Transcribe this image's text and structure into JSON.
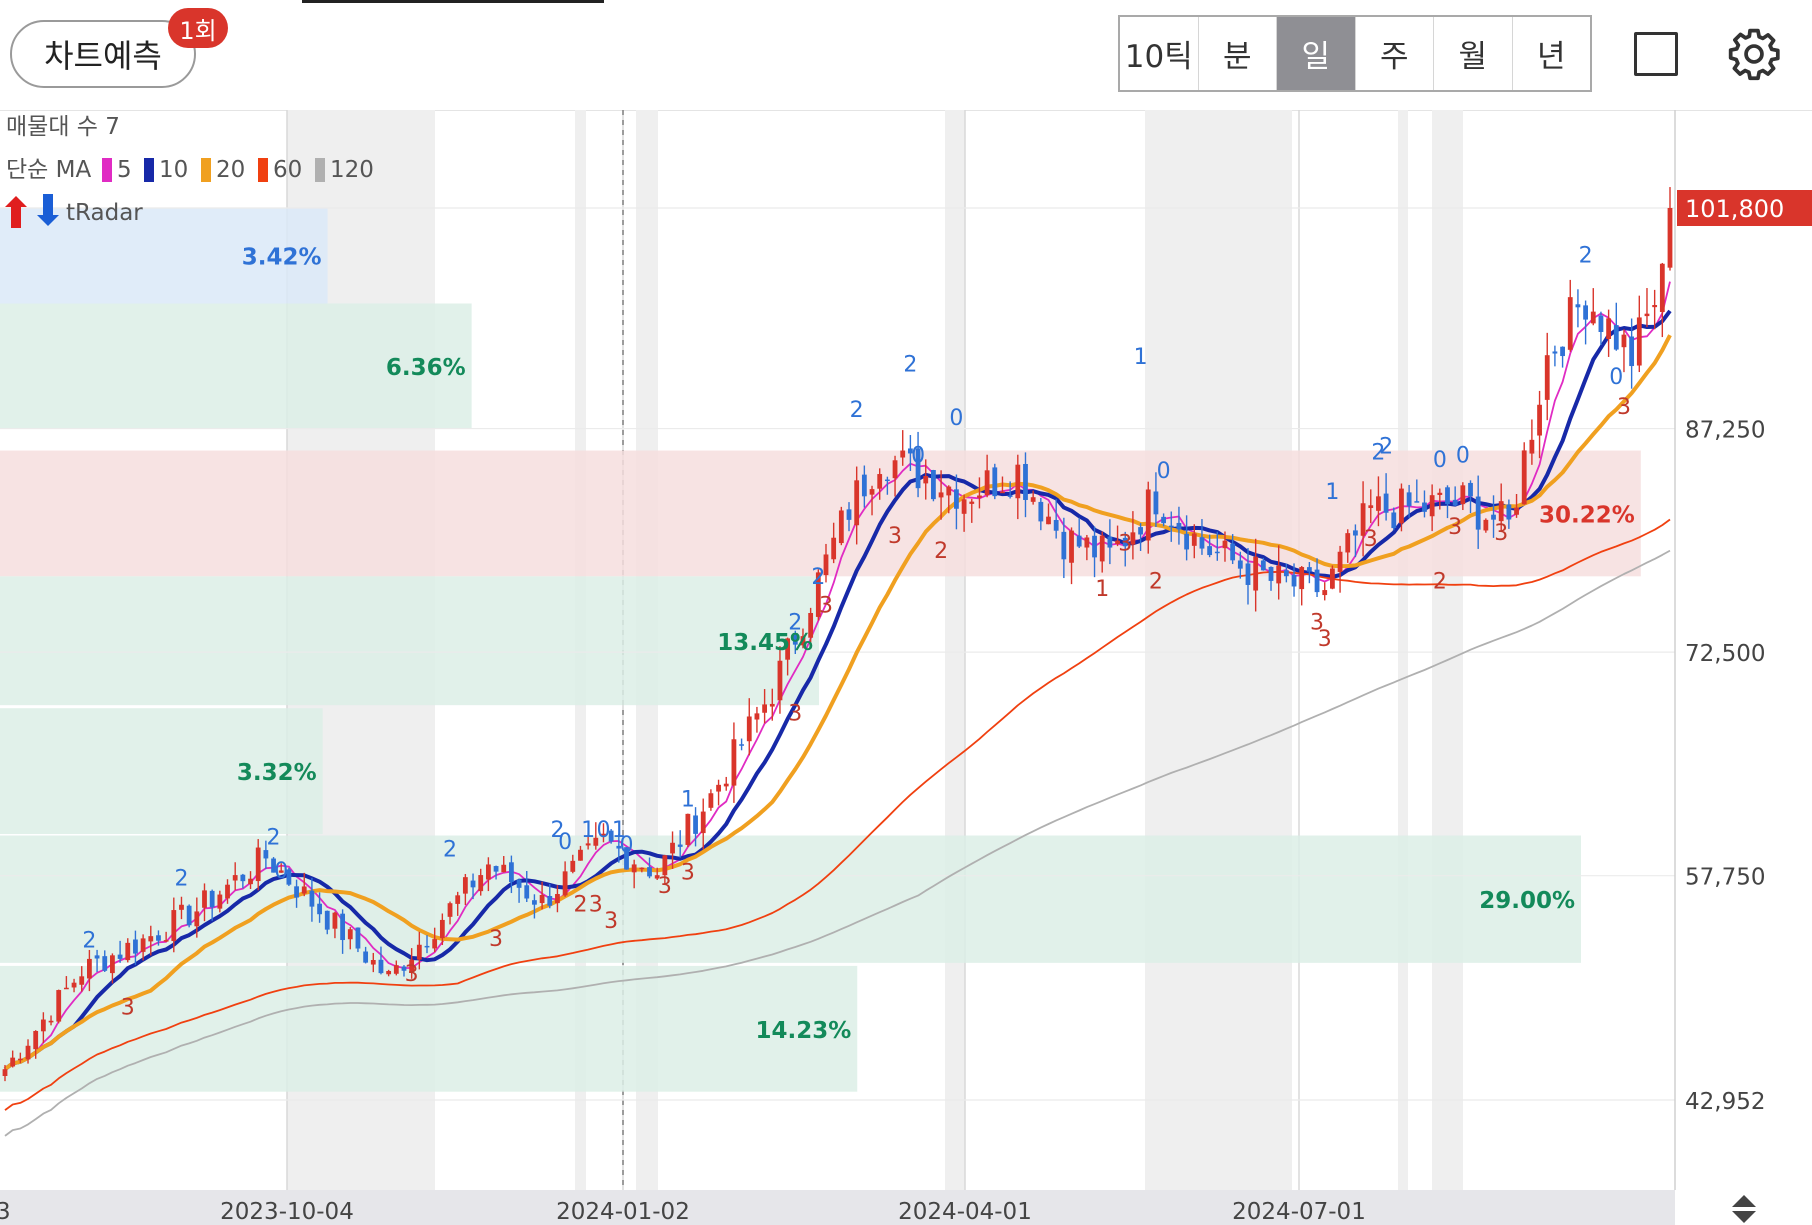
{
  "toolbar": {
    "predict_label": "차트예측",
    "predict_badge": "1회",
    "periods": [
      "10틱",
      "분",
      "일",
      "주",
      "월",
      "년"
    ],
    "active_period": "일",
    "layout_icon": "square-icon",
    "settings_icon": "gear-icon"
  },
  "legend": {
    "volume_profile": "매물대 수 7",
    "ma_type": "단순 MA",
    "ma_items": [
      {
        "period": "5",
        "color": "#e02bc3"
      },
      {
        "period": "10",
        "color": "#1729a8"
      },
      {
        "period": "20",
        "color": "#f0a020"
      },
      {
        "period": "60",
        "color": "#f04010"
      },
      {
        "period": "120",
        "color": "#b0b0b0"
      }
    ],
    "indicator": "tRadar"
  },
  "colors": {
    "up": "#d9352b",
    "down": "#2f72d6",
    "zone_green": "#dcefe6",
    "zone_blue": "#dbe9f8",
    "zone_red": "#f6dede",
    "pct_green": "#138a5a",
    "pct_blue": "#2f72d6",
    "pct_red": "#d9352b"
  },
  "chart_data": {
    "type": "candlestick",
    "y_axis": {
      "ticks": [
        "101,800",
        "87,250",
        "72,500",
        "57,750",
        "42,952"
      ],
      "values": [
        101800,
        87250,
        72500,
        57750,
        42952
      ]
    },
    "x_axis": {
      "ticks": [
        "2023-10-04",
        "2024-01-02",
        "2024-04-01",
        "2024-07-01"
      ],
      "left_clip_label": "3"
    },
    "last_price": "101,800",
    "last_price_value": 101800,
    "volume_profile": [
      {
        "low": 95500,
        "high": 101800,
        "pct": "3.42%",
        "share": 3.42,
        "color": "blue"
      },
      {
        "low": 87250,
        "high": 95500,
        "pct": "6.36%",
        "share": 6.36,
        "color": "green"
      },
      {
        "low": 77500,
        "high": 85800,
        "pct": "30.22%",
        "share": 30.22,
        "color": "red"
      },
      {
        "low": 69000,
        "high": 77500,
        "pct": "13.45%",
        "share": 13.45,
        "color": "green"
      },
      {
        "low": 60500,
        "high": 68800,
        "pct": "3.32%",
        "share": 3.32,
        "color": "green"
      },
      {
        "low": 52000,
        "high": 60400,
        "pct": "29.00%",
        "share": 29.0,
        "color": "green"
      },
      {
        "low": 43500,
        "high": 51800,
        "pct": "14.23%",
        "share": 14.23,
        "color": "green"
      }
    ],
    "signals": [
      {
        "text": "2",
        "kind": "up",
        "index": 11,
        "price": 53000
      },
      {
        "text": "3",
        "kind": "down",
        "index": 16,
        "price": 48600
      },
      {
        "text": "2",
        "kind": "up",
        "index": 23,
        "price": 57100
      },
      {
        "text": "2",
        "kind": "up",
        "index": 35,
        "price": 59800
      },
      {
        "text": "0",
        "kind": "up",
        "index": 36,
        "price": 57600
      },
      {
        "text": "3",
        "kind": "down",
        "index": 53,
        "price": 50800
      },
      {
        "text": "2",
        "kind": "up",
        "index": 58,
        "price": 59000
      },
      {
        "text": "3",
        "kind": "down",
        "index": 64,
        "price": 53100
      },
      {
        "text": "2",
        "kind": "up",
        "index": 72,
        "price": 60300
      },
      {
        "text": "0",
        "kind": "up",
        "index": 73,
        "price": 59500
      },
      {
        "text": "1",
        "kind": "up",
        "index": 76,
        "price": 60300
      },
      {
        "text": "0",
        "kind": "up",
        "index": 78,
        "price": 60300
      },
      {
        "text": "1",
        "kind": "up",
        "index": 80,
        "price": 60300
      },
      {
        "text": "0",
        "kind": "up",
        "index": 81,
        "price": 59300
      },
      {
        "text": "2",
        "kind": "down",
        "index": 75,
        "price": 55400
      },
      {
        "text": "3",
        "kind": "down",
        "index": 77,
        "price": 55400
      },
      {
        "text": "3",
        "kind": "down",
        "index": 79,
        "price": 54300
      },
      {
        "text": "3",
        "kind": "down",
        "index": 86,
        "price": 56600
      },
      {
        "text": "1",
        "kind": "up",
        "index": 89,
        "price": 62300
      },
      {
        "text": "3",
        "kind": "down",
        "index": 89,
        "price": 57500
      },
      {
        "text": "3",
        "kind": "down",
        "index": 103,
        "price": 68000
      },
      {
        "text": "2",
        "kind": "up",
        "index": 103,
        "price": 74000
      },
      {
        "text": "2",
        "kind": "up",
        "index": 106,
        "price": 77000
      },
      {
        "text": "3",
        "kind": "down",
        "index": 107,
        "price": 75100
      },
      {
        "text": "2",
        "kind": "up",
        "index": 111,
        "price": 88000
      },
      {
        "text": "2",
        "kind": "up",
        "index": 118,
        "price": 91000
      },
      {
        "text": "0",
        "kind": "up",
        "index": 119,
        "price": 85000
      },
      {
        "text": "3",
        "kind": "down",
        "index": 116,
        "price": 79700
      },
      {
        "text": "0",
        "kind": "up",
        "index": 124,
        "price": 87500
      },
      {
        "text": "2",
        "kind": "down",
        "index": 122,
        "price": 78700
      },
      {
        "text": "1",
        "kind": "up",
        "index": 148,
        "price": 91500
      },
      {
        "text": "0",
        "kind": "up",
        "index": 151,
        "price": 84000
      },
      {
        "text": "1",
        "kind": "down",
        "index": 143,
        "price": 76200
      },
      {
        "text": "3",
        "kind": "down",
        "index": 146,
        "price": 79200
      },
      {
        "text": "2",
        "kind": "down",
        "index": 150,
        "price": 76700
      },
      {
        "text": "3",
        "kind": "down",
        "index": 172,
        "price": 72900
      },
      {
        "text": "3",
        "kind": "down",
        "index": 171,
        "price": 74000
      },
      {
        "text": "1",
        "kind": "up",
        "index": 173,
        "price": 82600
      },
      {
        "text": "2",
        "kind": "up",
        "index": 179,
        "price": 85200
      },
      {
        "text": "2",
        "kind": "up",
        "index": 180,
        "price": 85600
      },
      {
        "text": "3",
        "kind": "down",
        "index": 178,
        "price": 79500
      },
      {
        "text": "0",
        "kind": "up",
        "index": 187,
        "price": 84700
      },
      {
        "text": "0",
        "kind": "up",
        "index": 190,
        "price": 85000
      },
      {
        "text": "3",
        "kind": "down",
        "index": 189,
        "price": 80300
      },
      {
        "text": "2",
        "kind": "down",
        "index": 187,
        "price": 76700
      },
      {
        "text": "3",
        "kind": "down",
        "index": 195,
        "price": 79900
      },
      {
        "text": "2",
        "kind": "up",
        "index": 206,
        "price": 98200
      },
      {
        "text": "3",
        "kind": "down",
        "index": 211,
        "price": 88200
      },
      {
        "text": "0",
        "kind": "up",
        "index": 210,
        "price": 90200
      }
    ]
  }
}
